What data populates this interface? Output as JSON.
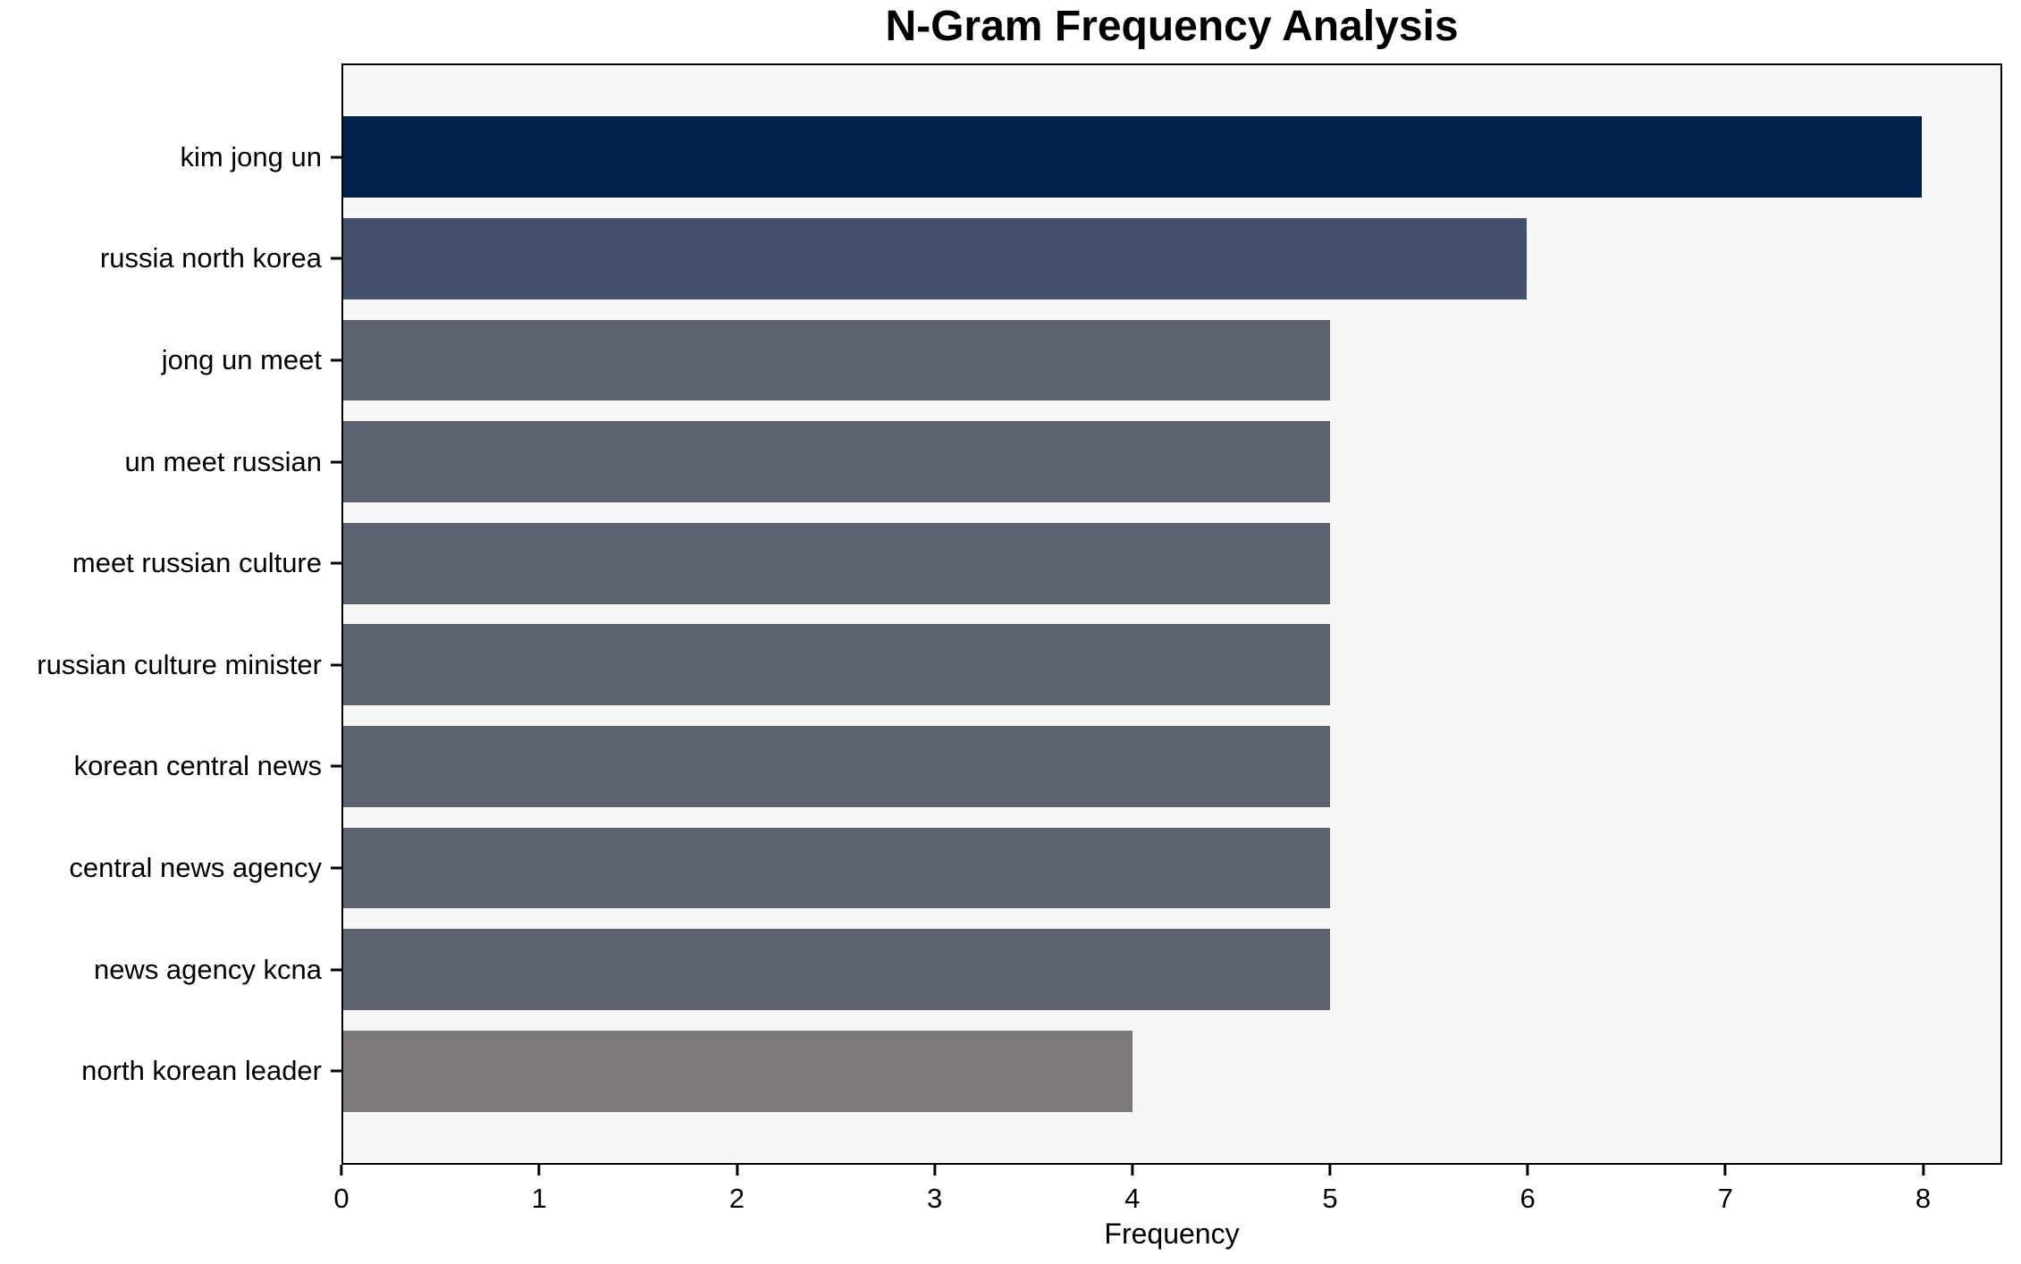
{
  "chart_data": {
    "type": "bar",
    "orientation": "horizontal",
    "title": "N-Gram Frequency Analysis",
    "xlabel": "Frequency",
    "ylabel": "",
    "categories": [
      "kim jong un",
      "russia north korea",
      "jong un meet",
      "un meet russian",
      "meet russian culture",
      "russian culture minister",
      "korean central news",
      "central news agency",
      "news agency kcna",
      "north korean leader"
    ],
    "values": [
      8,
      6,
      5,
      5,
      5,
      5,
      5,
      5,
      5,
      4
    ],
    "bar_colors": [
      "#002149",
      "#45506c",
      "#5d626e",
      "#5d626e",
      "#5d626e",
      "#5d626e",
      "#5d626e",
      "#5d626e",
      "#5d626e",
      "#7b7a76"
    ],
    "xlim": [
      0,
      8.4
    ],
    "xticks": [
      0,
      1,
      2,
      3,
      4,
      5,
      6,
      7,
      8
    ],
    "grid": false,
    "legend_position": "none",
    "plot_background": "#f7f7f7",
    "figure_background": "#ffffff",
    "spine_color": "#000000",
    "text_color": "#000000"
  }
}
